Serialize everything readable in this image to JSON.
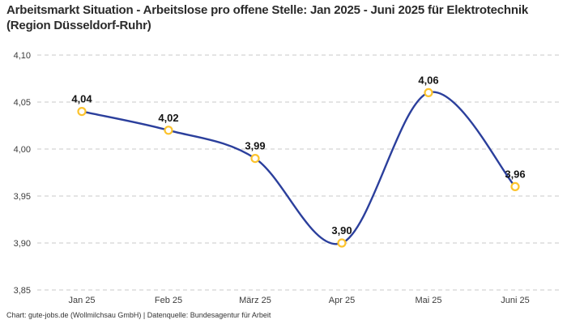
{
  "header": {
    "title": "Arbeitsmarkt Situation - Arbeitslose pro offene Stelle: Jan 2025 - Juni 2025 für Elektrotechnik (Region Düsseldorf-Ruhr)"
  },
  "footer": {
    "credit": "Chart: gute-jobs.de (Wollmilchsau GmbH) | Datenquelle: Bundesagentur für Arbeit"
  },
  "colors": {
    "line": "#2b3f9c",
    "marker_stroke": "#fcc32d",
    "marker_fill": "#ffffff",
    "grid": "#c9c9c9",
    "title_text": "#2b2b2b",
    "axis_text": "#3c3c3c",
    "point_label_text": "#141414",
    "background": "#ffffff"
  },
  "chart_data": {
    "type": "line",
    "title": "Arbeitsmarkt Situation - Arbeitslose pro offene Stelle: Jan 2025 - Juni 2025 für Elektrotechnik (Region Düsseldorf-Ruhr)",
    "categories": [
      "Jan 25",
      "Feb 25",
      "März 25",
      "Apr 25",
      "Mai 25",
      "Juni 25"
    ],
    "values": [
      4.04,
      4.02,
      3.99,
      3.9,
      4.06,
      3.96
    ],
    "value_labels": [
      "4,04",
      "4,02",
      "3,99",
      "3,90",
      "4,06",
      "3,96"
    ],
    "xlabel": "",
    "ylabel": "",
    "ylim": [
      3.85,
      4.1
    ],
    "y_ticks": [
      4.1,
      4.05,
      4.0,
      3.95,
      3.9,
      3.85
    ],
    "y_tick_labels": [
      "4,10",
      "4,05",
      "4,00",
      "3,95",
      "3,90",
      "3,85"
    ],
    "grid": "horizontal-dashed",
    "legend": "none",
    "line_style": "smooth",
    "marker_style": "open-circle"
  }
}
